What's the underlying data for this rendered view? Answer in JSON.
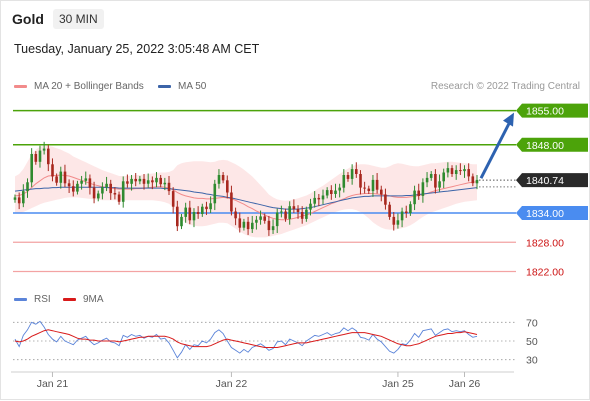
{
  "header": {
    "title": "Gold",
    "timeframe": "30 MIN",
    "datetime": "Tuesday, January 25, 2022 3:05:48 AM CET"
  },
  "legend": {
    "ma20": "MA 20 + Bollinger Bands",
    "ma50": "MA 50",
    "rsi": "RSI",
    "ma9": "9MA"
  },
  "credit": "Research © 2022 Trading Central",
  "colors": {
    "ma20": "#f28b8b",
    "ma50": "#3c64a8",
    "resistance": "#4ca30a",
    "support": "#4a8cf0",
    "support_light": "#f3a3a3",
    "target_arrow": "#2d62b0",
    "price_box": "#2a2a2a",
    "bull_candle": "#2f8a2f",
    "bear_candle": "#a8281f",
    "rsi_line": "#5b84d9",
    "rsi_ma": "#d81a1a"
  },
  "chart_data": [
    {
      "type": "candlestick",
      "title": "Gold",
      "timeframe": "30 MIN",
      "x_ticks": [
        "Jan 21",
        "Jan 22",
        "Jan 25",
        "Jan 26"
      ],
      "ylim": [
        1818,
        1858
      ],
      "current_price": 1840.74,
      "levels": [
        {
          "label": "1855.00",
          "value": 1855.0,
          "kind": "resistance"
        },
        {
          "label": "1848.00",
          "value": 1848.0,
          "kind": "resistance"
        },
        {
          "label": "1834.00",
          "value": 1834.0,
          "kind": "pivot"
        },
        {
          "label": "1828.00",
          "value": 1828.0,
          "kind": "support"
        },
        {
          "label": "1822.00",
          "value": 1822.0,
          "kind": "support"
        }
      ],
      "target": {
        "from": 1840.74,
        "to": 1855.0
      },
      "closes": [
        1837.2,
        1836.0,
        1838.5,
        1840.3,
        1846.1,
        1844.5,
        1846.8,
        1847.2,
        1844.0,
        1841.5,
        1840.2,
        1842.5,
        1840.1,
        1839.5,
        1838.4,
        1840.0,
        1840.6,
        1841.1,
        1839.2,
        1837.0,
        1838.0,
        1839.3,
        1840.0,
        1838.1,
        1837.8,
        1836.3,
        1840.5,
        1840.0,
        1841.0,
        1840.5,
        1841.0,
        1840.0,
        1840.7,
        1840.3,
        1841.2,
        1839.9,
        1840.2,
        1838.5,
        1835.3,
        1831.3,
        1833.2,
        1835.1,
        1832.5,
        1834.2,
        1833.8,
        1835.3,
        1834.8,
        1836.0,
        1840.0,
        1841.8,
        1840.7,
        1838.2,
        1834.3,
        1832.9,
        1831.0,
        1832.2,
        1830.7,
        1832.0,
        1832.6,
        1833.3,
        1832.4,
        1830.5,
        1831.3,
        1834.1,
        1834.3,
        1832.8,
        1835.4,
        1834.8,
        1834.2,
        1832.8,
        1834.7,
        1835.9,
        1837.1,
        1836.8,
        1837.6,
        1838.7,
        1837.9,
        1838.6,
        1839.2,
        1841.8,
        1841.0,
        1843.0,
        1842.0,
        1839.2,
        1839.0,
        1838.5,
        1840.8,
        1838.8,
        1837.8,
        1835.7,
        1833.2,
        1831.6,
        1832.5,
        1834.3,
        1834.0,
        1835.8,
        1838.6,
        1837.5,
        1840.3,
        1841.2,
        1842.0,
        1839.2,
        1840.5,
        1842.3,
        1843.2,
        1842.0,
        1842.8,
        1842.6,
        1843.0,
        1841.5,
        1840.1,
        1840.8
      ],
      "bb_upper": [
        1841.5,
        1842.0,
        1843.0,
        1844.5,
        1846.0,
        1847.0,
        1847.6,
        1847.8,
        1847.8,
        1847.6,
        1847.3,
        1847.0,
        1846.6,
        1846.2,
        1845.6,
        1845.2,
        1844.8,
        1844.4,
        1844.0,
        1843.6,
        1843.2,
        1842.8,
        1842.5,
        1842.2,
        1841.9,
        1841.6,
        1841.6,
        1841.6,
        1841.7,
        1841.8,
        1841.8,
        1841.9,
        1842.0,
        1842.1,
        1842.2,
        1842.3,
        1842.3,
        1842.4,
        1842.8,
        1843.8,
        1844.2,
        1844.4,
        1844.5,
        1844.6,
        1844.6,
        1844.6,
        1844.5,
        1844.4,
        1844.5,
        1844.8,
        1844.9,
        1844.8,
        1844.4,
        1844.0,
        1843.5,
        1842.9,
        1842.2,
        1841.5,
        1840.6,
        1839.7,
        1838.8,
        1837.8,
        1837.2,
        1836.8,
        1836.6,
        1836.5,
        1836.6,
        1836.8,
        1837.0,
        1837.3,
        1837.6,
        1838.0,
        1838.6,
        1839.1,
        1839.6,
        1840.2,
        1840.8,
        1841.4,
        1842.0,
        1842.6,
        1843.1,
        1843.6,
        1843.9,
        1844.0,
        1844.0,
        1843.9,
        1843.7,
        1843.5,
        1843.3,
        1843.3,
        1843.6,
        1844.0,
        1844.2,
        1844.1,
        1843.9,
        1843.7,
        1843.6,
        1843.6,
        1843.8,
        1844.0,
        1844.2,
        1844.2,
        1844.3,
        1844.4,
        1844.5,
        1844.5,
        1844.4,
        1844.3,
        1844.2,
        1844.1,
        1844.0,
        1844.0
      ],
      "bb_lower": [
        1834.0,
        1834.0,
        1834.2,
        1834.6,
        1835.0,
        1835.4,
        1835.8,
        1836.1,
        1836.3,
        1836.5,
        1836.7,
        1836.9,
        1837.1,
        1837.2,
        1837.2,
        1837.2,
        1837.1,
        1837.0,
        1836.9,
        1836.8,
        1836.7,
        1836.6,
        1836.6,
        1836.6,
        1836.6,
        1836.6,
        1836.6,
        1836.6,
        1836.6,
        1836.6,
        1836.6,
        1836.6,
        1836.6,
        1836.6,
        1836.5,
        1836.4,
        1836.2,
        1835.9,
        1835.2,
        1833.8,
        1832.8,
        1832.0,
        1831.6,
        1831.4,
        1831.3,
        1831.3,
        1831.4,
        1831.6,
        1831.8,
        1832.0,
        1832.0,
        1831.9,
        1831.4,
        1830.8,
        1830.2,
        1829.7,
        1829.3,
        1829.1,
        1829.0,
        1829.0,
        1829.0,
        1829.1,
        1829.3,
        1829.5,
        1829.7,
        1830.0,
        1830.3,
        1830.6,
        1830.9,
        1831.2,
        1831.5,
        1831.9,
        1832.3,
        1832.7,
        1833.1,
        1833.5,
        1833.9,
        1834.2,
        1834.5,
        1834.7,
        1834.8,
        1834.8,
        1834.6,
        1834.2,
        1833.6,
        1832.9,
        1832.1,
        1831.5,
        1831.0,
        1830.7,
        1830.6,
        1830.6,
        1830.7,
        1830.9,
        1831.1,
        1831.5,
        1832.0,
        1832.6,
        1833.2,
        1833.7,
        1834.1,
        1834.4,
        1834.7,
        1835.0,
        1835.3,
        1835.6,
        1835.9,
        1836.1,
        1836.3,
        1836.4,
        1836.5,
        1836.6
      ],
      "ma20": [
        1837.5,
        1837.6,
        1837.9,
        1838.4,
        1839.2,
        1840.0,
        1840.6,
        1841.2,
        1841.6,
        1841.7,
        1841.7,
        1841.8,
        1841.7,
        1841.6,
        1841.3,
        1841.0,
        1840.7,
        1840.4,
        1840.1,
        1839.8,
        1839.6,
        1839.4,
        1839.3,
        1839.1,
        1839.0,
        1838.9,
        1838.9,
        1838.9,
        1838.9,
        1839.0,
        1839.0,
        1839.1,
        1839.2,
        1839.3,
        1839.4,
        1839.4,
        1839.3,
        1839.1,
        1838.8,
        1838.2,
        1837.8,
        1837.5,
        1837.3,
        1837.1,
        1837.0,
        1837.0,
        1836.9,
        1836.9,
        1837.0,
        1837.1,
        1837.2,
        1837.1,
        1836.9,
        1836.6,
        1836.2,
        1835.8,
        1835.3,
        1834.9,
        1834.4,
        1834.0,
        1833.6,
        1833.2,
        1832.9,
        1832.7,
        1832.6,
        1832.6,
        1832.7,
        1832.9,
        1833.1,
        1833.4,
        1833.6,
        1833.9,
        1834.3,
        1834.7,
        1835.1,
        1835.5,
        1835.9,
        1836.2,
        1836.6,
        1836.9,
        1837.3,
        1837.6,
        1837.8,
        1837.9,
        1838.0,
        1838.0,
        1838.0,
        1837.9,
        1837.8,
        1837.7,
        1837.5,
        1837.3,
        1837.2,
        1837.2,
        1837.2,
        1837.3,
        1837.4,
        1837.6,
        1837.8,
        1838.0,
        1838.3,
        1838.6,
        1838.8,
        1839.0,
        1839.2,
        1839.4,
        1839.6,
        1839.8,
        1840.0,
        1840.2,
        1840.3,
        1840.4
      ],
      "ma50": [
        1838.5,
        1838.6,
        1838.7,
        1838.8,
        1838.9,
        1839.0,
        1839.0,
        1839.1,
        1839.1,
        1839.2,
        1839.2,
        1839.3,
        1839.3,
        1839.3,
        1839.3,
        1839.3,
        1839.3,
        1839.3,
        1839.3,
        1839.3,
        1839.3,
        1839.3,
        1839.2,
        1839.2,
        1839.2,
        1839.1,
        1839.1,
        1839.1,
        1839.1,
        1839.1,
        1839.1,
        1839.1,
        1839.1,
        1839.1,
        1839.1,
        1839.1,
        1839.0,
        1839.0,
        1838.9,
        1838.8,
        1838.7,
        1838.6,
        1838.5,
        1838.3,
        1838.2,
        1838.1,
        1837.9,
        1837.8,
        1837.6,
        1837.5,
        1837.4,
        1837.2,
        1837.1,
        1836.9,
        1836.7,
        1836.5,
        1836.3,
        1836.1,
        1835.9,
        1835.7,
        1835.5,
        1835.3,
        1835.1,
        1835.0,
        1834.9,
        1834.8,
        1834.8,
        1834.8,
        1834.8,
        1834.9,
        1835.0,
        1835.1,
        1835.3,
        1835.5,
        1835.7,
        1835.9,
        1836.1,
        1836.3,
        1836.5,
        1836.7,
        1836.9,
        1837.1,
        1837.2,
        1837.3,
        1837.4,
        1837.4,
        1837.5,
        1837.5,
        1837.5,
        1837.5,
        1837.5,
        1837.5,
        1837.5,
        1837.5,
        1837.6,
        1837.6,
        1837.7,
        1837.8,
        1837.9,
        1838.0,
        1838.1,
        1838.2,
        1838.3,
        1838.4,
        1838.5,
        1838.6,
        1838.7,
        1838.8,
        1838.9,
        1839.0,
        1839.1,
        1839.2
      ]
    },
    {
      "type": "line",
      "title": "RSI",
      "ylim": [
        20,
        80
      ],
      "y_ticks": [
        70,
        50,
        30
      ],
      "series": [
        {
          "name": "RSI",
          "values": [
            52,
            44,
            56,
            62,
            70,
            68,
            71,
            65,
            57,
            52,
            49,
            55,
            50,
            48,
            46,
            51,
            53,
            55,
            50,
            46,
            48,
            51,
            53,
            49,
            48,
            45,
            56,
            54,
            57,
            55,
            56,
            53,
            55,
            54,
            57,
            52,
            53,
            48,
            40,
            32,
            38,
            46,
            41,
            46,
            45,
            50,
            48,
            52,
            59,
            62,
            58,
            50,
            43,
            40,
            37,
            41,
            38,
            43,
            45,
            47,
            44,
            40,
            42,
            49,
            50,
            46,
            52,
            50,
            48,
            45,
            50,
            53,
            56,
            55,
            57,
            59,
            56,
            58,
            59,
            64,
            61,
            64,
            61,
            54,
            53,
            51,
            57,
            52,
            49,
            44,
            39,
            37,
            41,
            47,
            46,
            51,
            58,
            54,
            61,
            62,
            63,
            56,
            59,
            62,
            63,
            60,
            61,
            60,
            61,
            57,
            54,
            55
          ]
        },
        {
          "name": "9MA",
          "values": [
            50,
            49,
            50,
            52,
            55,
            57,
            59,
            61,
            62,
            61,
            60,
            59,
            58,
            57,
            55,
            53,
            52,
            52,
            51,
            51,
            50,
            50,
            50,
            50,
            50,
            49,
            50,
            51,
            52,
            53,
            54,
            54,
            55,
            55,
            55,
            55,
            55,
            54,
            52,
            49,
            47,
            46,
            45,
            44,
            44,
            44,
            44,
            45,
            47,
            49,
            51,
            52,
            51,
            50,
            49,
            48,
            47,
            46,
            45,
            44,
            43,
            43,
            43,
            43,
            44,
            45,
            46,
            47,
            48,
            48,
            48,
            49,
            50,
            51,
            52,
            53,
            54,
            55,
            56,
            57,
            58,
            59,
            59,
            59,
            59,
            58,
            57,
            56,
            55,
            53,
            51,
            49,
            47,
            46,
            45,
            45,
            46,
            47,
            49,
            51,
            53,
            55,
            56,
            57,
            58,
            58,
            59,
            59,
            60,
            59,
            58,
            57
          ]
        }
      ]
    }
  ]
}
